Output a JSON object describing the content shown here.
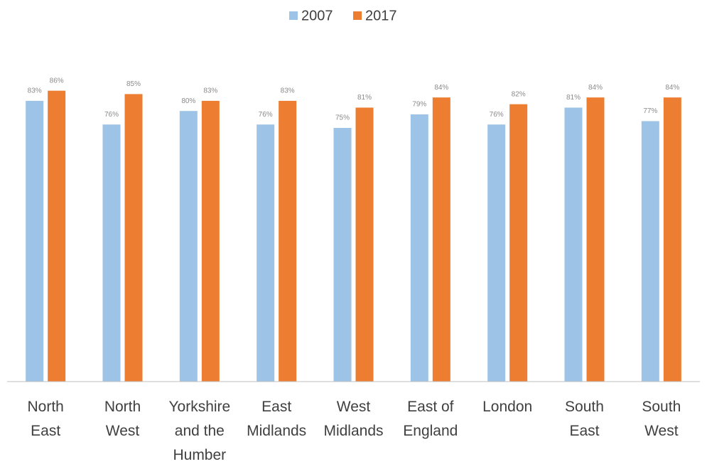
{
  "chart_data": {
    "type": "bar",
    "categories": [
      "North East",
      "North West",
      "Yorkshire and the Humber",
      "East Midlands",
      "West Midlands",
      "East of England",
      "London",
      "South East",
      "South West"
    ],
    "series": [
      {
        "name": "2007",
        "color": "#9dc3e6",
        "values": [
          83,
          76,
          80,
          76,
          75,
          79,
          76,
          81,
          77
        ],
        "value_labels": [
          "83%",
          "76%",
          "80%",
          "76%",
          "75%",
          "79%",
          "76%",
          "81%",
          "77%"
        ]
      },
      {
        "name": "2017",
        "color": "#ed7d31",
        "values": [
          86,
          85,
          83,
          83,
          81,
          84,
          82,
          84,
          84
        ],
        "value_labels": [
          "86%",
          "85%",
          "83%",
          "83%",
          "81%",
          "84%",
          "82%",
          "84%",
          "84%"
        ]
      }
    ],
    "ylim": [
      0,
      100
    ],
    "legend": "top"
  }
}
